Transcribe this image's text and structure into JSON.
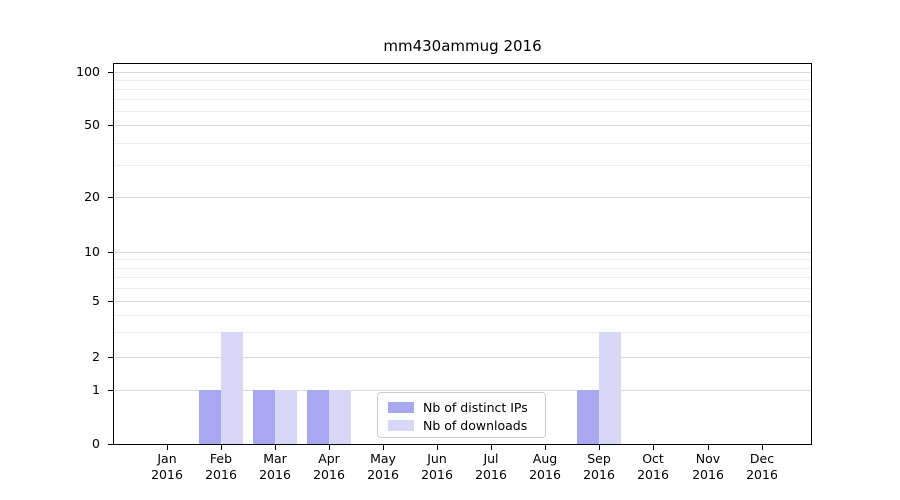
{
  "chart_data": {
    "type": "bar",
    "title": "mm430ammug 2016",
    "months": [
      "Jan",
      "Feb",
      "Mar",
      "Apr",
      "May",
      "Jun",
      "Jul",
      "Aug",
      "Sep",
      "Oct",
      "Nov",
      "Dec"
    ],
    "year": "2016",
    "series": [
      {
        "name": "Nb of distinct IPs",
        "color": "#a8a8f0",
        "values": [
          0,
          1,
          1,
          1,
          0,
          0,
          0,
          0,
          1,
          0,
          0,
          0
        ]
      },
      {
        "name": "Nb of downloads",
        "color": "#d8d8f6",
        "values": [
          0,
          3,
          1,
          1,
          0,
          0,
          0,
          0,
          3,
          0,
          0,
          0
        ]
      }
    ],
    "y_axis": {
      "scale": "symlog",
      "major_ticks": [
        0,
        1,
        2,
        5,
        10,
        20,
        50,
        100
      ],
      "minor_ticks": [
        3,
        4,
        6,
        7,
        8,
        9,
        30,
        40,
        60,
        70,
        80,
        90
      ],
      "ylim": [
        0,
        110
      ]
    },
    "grid": true,
    "legend_position": "lower center",
    "colors": {
      "grid_major": "#d9d9d9",
      "grid_minor": "#ededed",
      "axis": "#000000",
      "background": "#ffffff",
      "legend_border": "#cccccc"
    }
  }
}
